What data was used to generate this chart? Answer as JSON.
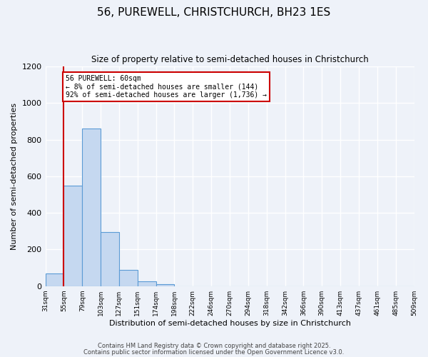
{
  "title": "56, PUREWELL, CHRISTCHURCH, BH23 1ES",
  "subtitle": "Size of property relative to semi-detached houses in Christchurch",
  "xlabel": "Distribution of semi-detached houses by size in Christchurch",
  "ylabel": "Number of semi-detached properties",
  "bin_labels": [
    "31sqm",
    "55sqm",
    "79sqm",
    "103sqm",
    "127sqm",
    "151sqm",
    "174sqm",
    "198sqm",
    "222sqm",
    "246sqm",
    "270sqm",
    "294sqm",
    "318sqm",
    "342sqm",
    "366sqm",
    "390sqm",
    "413sqm",
    "437sqm",
    "461sqm",
    "485sqm",
    "509sqm"
  ],
  "bar_values": [
    70,
    550,
    860,
    295,
    90,
    28,
    10,
    0,
    0,
    0,
    0,
    0,
    0,
    0,
    0,
    0,
    0,
    0,
    0,
    0
  ],
  "bar_color": "#c5d8f0",
  "bar_edge_color": "#5b9bd5",
  "property_line_x": 1,
  "annotation_text": "56 PUREWELL: 60sqm\n← 8% of semi-detached houses are smaller (144)\n92% of semi-detached houses are larger (1,736) →",
  "annotation_box_color": "#ffffff",
  "annotation_box_edge": "#cc0000",
  "red_line_color": "#cc0000",
  "ylim": [
    0,
    1200
  ],
  "yticks": [
    0,
    200,
    400,
    600,
    800,
    1000,
    1200
  ],
  "footer1": "Contains HM Land Registry data © Crown copyright and database right 2025.",
  "footer2": "Contains public sector information licensed under the Open Government Licence v3.0.",
  "background_color": "#eef2f9",
  "grid_color": "#ffffff"
}
